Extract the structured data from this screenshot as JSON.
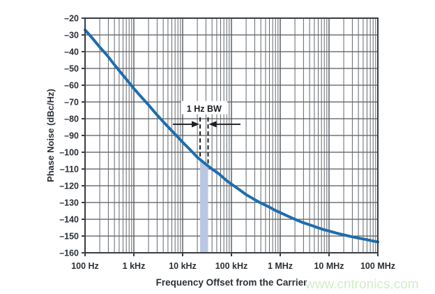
{
  "watermark": "www.cntronics.com",
  "colors": {
    "curve": "#1d6dae",
    "band": "#b9c7e2",
    "grid_minor": "#63676c",
    "grid_major": "#53575c",
    "frame": "#383d43",
    "text": "#2b3036",
    "annotation": "#1a1d21",
    "watermark": "#cfeec6",
    "background": "#ffffff"
  },
  "chart_data": {
    "type": "line",
    "x_scale": "log",
    "grid": true,
    "legend": false,
    "xlabel": "Frequency Offset from the Carrier",
    "ylabel": "Phase Noise (dBc/Hz)",
    "xlim_hz": [
      100,
      100000000
    ],
    "ylim": [
      -160,
      -20
    ],
    "y_ticks": [
      {
        "value": -20,
        "label": "–20"
      },
      {
        "value": -30,
        "label": "–30"
      },
      {
        "value": -40,
        "label": "–40"
      },
      {
        "value": -50,
        "label": "–50"
      },
      {
        "value": -60,
        "label": "–60"
      },
      {
        "value": -70,
        "label": "–70"
      },
      {
        "value": -80,
        "label": "–80"
      },
      {
        "value": -90,
        "label": "–90"
      },
      {
        "value": -100,
        "label": "–100"
      },
      {
        "value": -110,
        "label": "–110"
      },
      {
        "value": -120,
        "label": "–120"
      },
      {
        "value": -130,
        "label": "–130"
      },
      {
        "value": -140,
        "label": "–140"
      },
      {
        "value": -150,
        "label": "–150"
      },
      {
        "value": -160,
        "label": "–160"
      }
    ],
    "x_ticks": [
      {
        "hz": 100,
        "label": "100 Hz"
      },
      {
        "hz": 1000,
        "label": "1 kHz"
      },
      {
        "hz": 10000,
        "label": "10 kHz"
      },
      {
        "hz": 100000,
        "label": "100 kHz"
      },
      {
        "hz": 1000000,
        "label": "1 MHz"
      },
      {
        "hz": 10000000,
        "label": "10 MHz"
      },
      {
        "hz": 100000000,
        "label": "100 MHz"
      }
    ],
    "series": [
      {
        "name": "phase-noise",
        "points_hz_dbc": [
          [
            100,
            -27
          ],
          [
            140,
            -31.8
          ],
          [
            200,
            -37.3
          ],
          [
            280,
            -42
          ],
          [
            400,
            -47.8
          ],
          [
            560,
            -53
          ],
          [
            800,
            -58.5
          ],
          [
            1000,
            -62
          ],
          [
            1400,
            -66.8
          ],
          [
            2000,
            -71.8
          ],
          [
            2800,
            -76.8
          ],
          [
            4000,
            -81.8
          ],
          [
            5600,
            -86.3
          ],
          [
            8000,
            -91
          ],
          [
            10000,
            -94
          ],
          [
            14000,
            -98.3
          ],
          [
            20000,
            -103
          ],
          [
            28000,
            -106.5
          ],
          [
            40000,
            -110
          ],
          [
            56000,
            -113
          ],
          [
            80000,
            -117
          ],
          [
            100000,
            -119
          ],
          [
            140000,
            -122
          ],
          [
            200000,
            -125.3
          ],
          [
            280000,
            -127.8
          ],
          [
            400000,
            -130.3
          ],
          [
            560000,
            -132.3
          ],
          [
            800000,
            -134.8
          ],
          [
            1000000,
            -136
          ],
          [
            1400000,
            -138
          ],
          [
            2000000,
            -140
          ],
          [
            2800000,
            -141.8
          ],
          [
            4000000,
            -143.3
          ],
          [
            5600000,
            -144.8
          ],
          [
            8000000,
            -146.3
          ],
          [
            10000000,
            -147
          ],
          [
            14000000,
            -148.2
          ],
          [
            20000000,
            -149.3
          ],
          [
            28000000,
            -150.3
          ],
          [
            40000000,
            -151.2
          ],
          [
            56000000,
            -152
          ],
          [
            80000000,
            -153
          ],
          [
            100000000,
            -153.5
          ]
        ]
      }
    ],
    "annotation": {
      "label": "1 Hz BW",
      "band_hz": [
        22800,
        33200
      ],
      "arrow_tail_hz": [
        6300,
        153000
      ],
      "arrow_y_db": -83.3,
      "label_y_db": -74,
      "dash_top_db": -79.2
    }
  }
}
